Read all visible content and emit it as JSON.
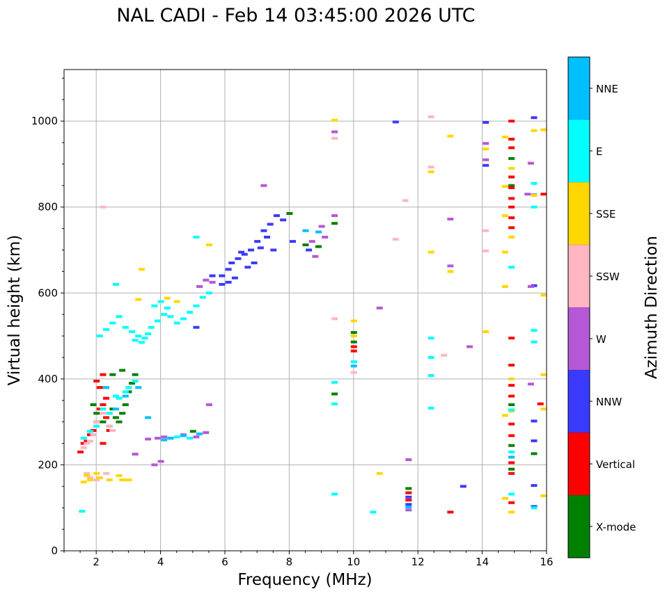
{
  "chart_data": {
    "type": "scatter",
    "title": "NAL CADI - Feb 14 03:45:00 2026 UTC",
    "xlabel": "Frequency (MHz)",
    "ylabel": "Virtual height (km)",
    "xlim": [
      1,
      16
    ],
    "ylim": [
      0,
      1120
    ],
    "xticks": [
      2,
      4,
      6,
      8,
      10,
      12,
      14,
      16
    ],
    "yticks": [
      0,
      200,
      400,
      600,
      800,
      1000
    ],
    "grid": true,
    "colorbar": {
      "title": "Azimuth Direction",
      "categories": [
        "X-mode",
        "Vertical",
        "NNW",
        "W",
        "SSW",
        "SSE",
        "E",
        "NNE"
      ],
      "colors": [
        "#008000",
        "#ff0000",
        "#3a3aff",
        "#b558d6",
        "#ffb6c1",
        "#ffd700",
        "#00ffff",
        "#00bfff"
      ]
    },
    "series": [
      {
        "name": "X-mode",
        "points": [
          [
            1.9,
            340
          ],
          [
            2.0,
            320
          ],
          [
            2.2,
            300
          ],
          [
            2.4,
            290
          ],
          [
            2.5,
            330
          ],
          [
            2.6,
            310
          ],
          [
            2.7,
            300
          ],
          [
            2.8,
            320
          ],
          [
            2.9,
            340
          ],
          [
            3.0,
            370
          ],
          [
            3.1,
            390
          ],
          [
            3.2,
            410
          ],
          [
            2.8,
            420
          ],
          [
            2.5,
            410
          ],
          [
            5.0,
            278
          ],
          [
            8.0,
            785
          ],
          [
            8.5,
            712
          ],
          [
            8.9,
            708
          ],
          [
            9.4,
            762
          ],
          [
            9.4,
            365
          ],
          [
            10.0,
            508
          ],
          [
            10.0,
            486
          ],
          [
            11.7,
            145
          ],
          [
            14.9,
            245
          ],
          [
            14.9,
            190
          ],
          [
            14.9,
            340
          ],
          [
            14.9,
            850
          ],
          [
            14.9,
            913
          ],
          [
            15.6,
            226
          ]
        ]
      },
      {
        "name": "Vertical",
        "points": [
          [
            1.5,
            230
          ],
          [
            1.6,
            250
          ],
          [
            1.7,
            255
          ],
          [
            1.8,
            270
          ],
          [
            1.9,
            280
          ],
          [
            2.0,
            300
          ],
          [
            2.1,
            330
          ],
          [
            2.2,
            340
          ],
          [
            2.3,
            310
          ],
          [
            2.4,
            280
          ],
          [
            2.2,
            250
          ],
          [
            2.1,
            380
          ],
          [
            2.2,
            410
          ],
          [
            2.0,
            395
          ],
          [
            2.3,
            355
          ],
          [
            10.0,
            475
          ],
          [
            10.0,
            465
          ],
          [
            11.7,
            135
          ],
          [
            11.7,
            118
          ],
          [
            13.0,
            90
          ],
          [
            14.9,
            1000
          ],
          [
            14.9,
            958
          ],
          [
            14.9,
            938
          ],
          [
            14.9,
            870
          ],
          [
            14.9,
            845
          ],
          [
            14.9,
            820
          ],
          [
            14.9,
            800
          ],
          [
            14.9,
            775
          ],
          [
            14.9,
            752
          ],
          [
            14.9,
            495
          ],
          [
            14.9,
            432
          ],
          [
            14.9,
            385
          ],
          [
            14.9,
            360
          ],
          [
            14.9,
            295
          ],
          [
            14.9,
            268
          ],
          [
            14.9,
            205
          ],
          [
            14.9,
            180
          ],
          [
            14.9,
            112
          ],
          [
            15.9,
            830
          ],
          [
            15.8,
            342
          ]
        ]
      },
      {
        "name": "NNW",
        "points": [
          [
            5.9,
            640
          ],
          [
            6.1,
            655
          ],
          [
            6.2,
            670
          ],
          [
            6.4,
            680
          ],
          [
            6.5,
            695
          ],
          [
            6.6,
            690
          ],
          [
            6.8,
            700
          ],
          [
            7.0,
            720
          ],
          [
            7.2,
            745
          ],
          [
            7.4,
            760
          ],
          [
            7.6,
            780
          ],
          [
            7.8,
            770
          ],
          [
            7.3,
            730
          ],
          [
            7.1,
            705
          ],
          [
            6.9,
            670
          ],
          [
            6.7,
            660
          ],
          [
            6.3,
            635
          ],
          [
            6.1,
            625
          ],
          [
            5.9,
            620
          ],
          [
            5.6,
            640
          ],
          [
            7.5,
            700
          ],
          [
            8.1,
            720
          ],
          [
            8.6,
            700
          ],
          [
            5.1,
            520
          ],
          [
            11.3,
            998
          ],
          [
            13.4,
            150
          ],
          [
            14.1,
            997
          ],
          [
            14.1,
            897
          ],
          [
            15.6,
            1008
          ],
          [
            15.6,
            828
          ],
          [
            15.6,
            617
          ],
          [
            15.6,
            302
          ],
          [
            15.6,
            256
          ],
          [
            15.6,
            152
          ],
          [
            15.6,
            103
          ],
          [
            11.7,
            125
          ],
          [
            11.7,
            108
          ]
        ]
      },
      {
        "name": "W",
        "points": [
          [
            3.2,
            225
          ],
          [
            3.6,
            260
          ],
          [
            3.9,
            262
          ],
          [
            4.1,
            265
          ],
          [
            4.3,
            262
          ],
          [
            4.7,
            270
          ],
          [
            5.1,
            265
          ],
          [
            5.4,
            275
          ],
          [
            4.0,
            208
          ],
          [
            3.8,
            200
          ],
          [
            5.2,
            615
          ],
          [
            5.4,
            630
          ],
          [
            5.6,
            625
          ],
          [
            7.2,
            850
          ],
          [
            8.7,
            720
          ],
          [
            8.8,
            685
          ],
          [
            9.0,
            755
          ],
          [
            9.1,
            730
          ],
          [
            9.4,
            975
          ],
          [
            9.4,
            780
          ],
          [
            10.8,
            565
          ],
          [
            11.7,
            212
          ],
          [
            11.7,
            95
          ],
          [
            13.0,
            772
          ],
          [
            13.0,
            663
          ],
          [
            13.6,
            475
          ],
          [
            14.1,
            948
          ],
          [
            14.1,
            910
          ],
          [
            15.5,
            902
          ],
          [
            15.5,
            615
          ],
          [
            15.5,
            388
          ],
          [
            15.4,
            830
          ],
          [
            5.5,
            340
          ]
        ]
      },
      {
        "name": "SSW",
        "points": [
          [
            1.6,
            240
          ],
          [
            1.7,
            250
          ],
          [
            1.8,
            255
          ],
          [
            1.9,
            270
          ],
          [
            2.0,
            300
          ],
          [
            2.2,
            320
          ],
          [
            2.4,
            290
          ],
          [
            2.5,
            280
          ],
          [
            1.7,
            180
          ],
          [
            1.8,
            170
          ],
          [
            2.0,
            165
          ],
          [
            2.3,
            180
          ],
          [
            2.2,
            800
          ],
          [
            9.4,
            960
          ],
          [
            9.4,
            540
          ],
          [
            10.0,
            415
          ],
          [
            11.3,
            725
          ],
          [
            11.6,
            815
          ],
          [
            12.4,
            1010
          ],
          [
            12.4,
            893
          ],
          [
            12.8,
            455
          ],
          [
            14.1,
            745
          ],
          [
            14.1,
            698
          ]
        ]
      },
      {
        "name": "SSE",
        "points": [
          [
            1.6,
            160
          ],
          [
            1.7,
            175
          ],
          [
            1.8,
            165
          ],
          [
            2.0,
            180
          ],
          [
            2.1,
            170
          ],
          [
            2.4,
            165
          ],
          [
            2.7,
            175
          ],
          [
            2.8,
            165
          ],
          [
            3.0,
            165
          ],
          [
            3.4,
            655
          ],
          [
            3.3,
            585
          ],
          [
            4.2,
            588
          ],
          [
            4.5,
            580
          ],
          [
            5.5,
            712
          ],
          [
            9.4,
            1002
          ],
          [
            10.0,
            535
          ],
          [
            10.0,
            500
          ],
          [
            10.8,
            180
          ],
          [
            12.4,
            882
          ],
          [
            12.4,
            695
          ],
          [
            13.0,
            965
          ],
          [
            13.0,
            650
          ],
          [
            14.1,
            935
          ],
          [
            14.1,
            510
          ],
          [
            14.7,
            963
          ],
          [
            14.7,
            848
          ],
          [
            14.7,
            780
          ],
          [
            14.7,
            695
          ],
          [
            14.7,
            615
          ],
          [
            14.7,
            315
          ],
          [
            14.7,
            122
          ],
          [
            14.9,
            890
          ],
          [
            14.9,
            730
          ],
          [
            14.9,
            400
          ],
          [
            14.9,
            325
          ],
          [
            14.9,
            90
          ],
          [
            15.6,
            978
          ],
          [
            15.6,
            827
          ],
          [
            15.9,
            980
          ],
          [
            15.9,
            595
          ],
          [
            15.9,
            410
          ],
          [
            15.9,
            330
          ],
          [
            15.9,
            128
          ]
        ]
      },
      {
        "name": "E",
        "points": [
          [
            1.6,
            262
          ],
          [
            1.8,
            278
          ],
          [
            2.0,
            290
          ],
          [
            2.2,
            330
          ],
          [
            2.4,
            320
          ],
          [
            2.6,
            360
          ],
          [
            2.7,
            355
          ],
          [
            2.9,
            370
          ],
          [
            3.0,
            380
          ],
          [
            3.2,
            395
          ],
          [
            2.1,
            500
          ],
          [
            2.3,
            515
          ],
          [
            2.5,
            530
          ],
          [
            2.7,
            545
          ],
          [
            2.9,
            520
          ],
          [
            3.1,
            510
          ],
          [
            3.3,
            500
          ],
          [
            3.5,
            495
          ],
          [
            3.7,
            520
          ],
          [
            3.9,
            535
          ],
          [
            4.1,
            550
          ],
          [
            4.3,
            545
          ],
          [
            4.5,
            530
          ],
          [
            4.7,
            540
          ],
          [
            4.9,
            555
          ],
          [
            5.1,
            570
          ],
          [
            5.3,
            590
          ],
          [
            5.5,
            600
          ],
          [
            3.2,
            490
          ],
          [
            3.4,
            485
          ],
          [
            3.6,
            505
          ],
          [
            3.8,
            570
          ],
          [
            4.0,
            580
          ],
          [
            4.2,
            565
          ],
          [
            2.6,
            620
          ],
          [
            5.1,
            730
          ],
          [
            4.5,
            265
          ],
          [
            4.9,
            262
          ],
          [
            1.55,
            92
          ],
          [
            9.4,
            392
          ],
          [
            9.4,
            342
          ],
          [
            9.4,
            132
          ],
          [
            10.0,
            440
          ],
          [
            10.6,
            90
          ],
          [
            12.4,
            495
          ],
          [
            12.4,
            450
          ],
          [
            12.4,
            408
          ],
          [
            12.4,
            332
          ],
          [
            14.9,
            660
          ],
          [
            14.9,
            328
          ],
          [
            14.9,
            230
          ],
          [
            14.9,
            132
          ],
          [
            15.6,
            855
          ],
          [
            15.6,
            800
          ],
          [
            15.6,
            513
          ],
          [
            15.6,
            486
          ],
          [
            15.6,
            100
          ]
        ]
      },
      {
        "name": "NNE",
        "points": [
          [
            2.3,
            380
          ],
          [
            2.6,
            330
          ],
          [
            2.9,
            360
          ],
          [
            3.3,
            380
          ],
          [
            3.6,
            310
          ],
          [
            4.1,
            258
          ],
          [
            4.3,
            262
          ],
          [
            4.7,
            268
          ],
          [
            5.2,
            272
          ],
          [
            8.5,
            745
          ],
          [
            8.9,
            742
          ],
          [
            10.0,
            430
          ],
          [
            11.7,
            102
          ],
          [
            14.9,
            218
          ]
        ]
      }
    ]
  }
}
